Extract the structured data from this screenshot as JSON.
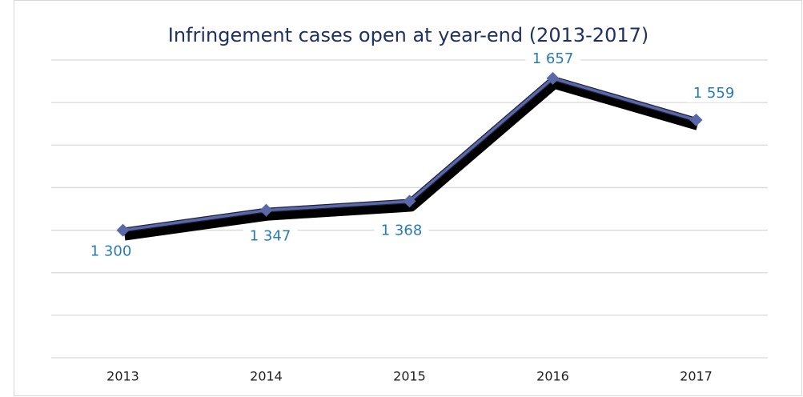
{
  "chart_data": {
    "type": "line",
    "title": "Infringement cases open at year-end (2013-2017)",
    "categories": [
      "2013",
      "2014",
      "2015",
      "2016",
      "2017"
    ],
    "series": [
      {
        "name": "Infringement cases",
        "color": "#5a68a8",
        "values": [
          1300,
          1347,
          1368,
          1657,
          1559
        ],
        "value_labels": [
          "1 300",
          "1 347",
          "1 368",
          "1 657",
          "1 559"
        ]
      }
    ],
    "ylim": [
      1000,
      1700
    ],
    "yticks": [
      1000,
      1100,
      1200,
      1300,
      1400,
      1500,
      1600,
      1700
    ],
    "grid": true
  }
}
